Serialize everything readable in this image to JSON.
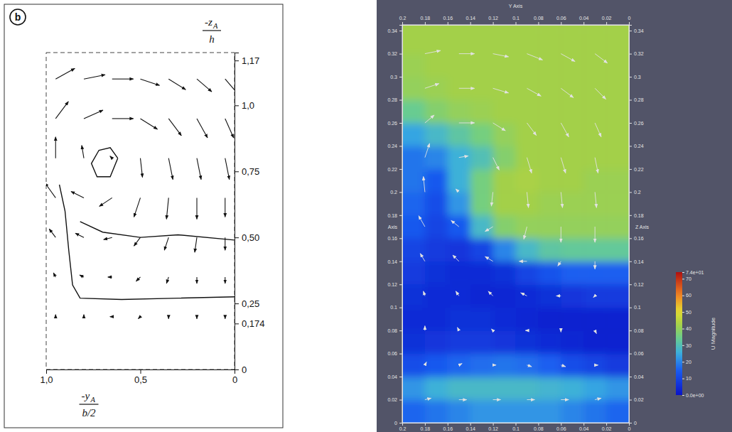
{
  "chart_data": [
    {
      "type": "quiver",
      "panel_label": "b",
      "color": "#111111",
      "xlim": [
        1.0,
        0
      ],
      "ylim": [
        0,
        1.2
      ],
      "xticks": [
        {
          "value": 1.0,
          "label": "1,0"
        },
        {
          "value": 0.5,
          "label": "0,5"
        },
        0
      ],
      "yticks": [
        0,
        {
          "value": 0.174,
          "label": "0,174"
        },
        {
          "value": 0.25,
          "label": "0,25"
        },
        {
          "value": 0.5,
          "label": "0,50"
        },
        {
          "value": 0.75,
          "label": "0,75"
        },
        {
          "value": 1.0,
          "label": "1,0"
        },
        {
          "value": 1.17,
          "label": "1,17"
        }
      ],
      "xlabel": {
        "numerator": "-y",
        "subscript": "A",
        "denominator": "b/2"
      },
      "ylabel": {
        "numerator": "-z",
        "subscript": "A",
        "denominator": "h"
      },
      "x": [
        0.95,
        0.8,
        0.65,
        0.5,
        0.35,
        0.2,
        0.05
      ],
      "y": [
        0.2,
        0.35,
        0.5,
        0.65,
        0.8,
        0.95,
        1.1
      ],
      "u": [
        [
          0,
          0,
          0.1,
          0.1,
          0,
          0,
          0
        ],
        [
          0.1,
          0.2,
          0.2,
          0.2,
          0.1,
          0,
          0
        ],
        [
          0.3,
          0.4,
          0.4,
          0.3,
          0.2,
          0.1,
          0
        ],
        [
          0.5,
          0.6,
          0.6,
          0.3,
          0.1,
          0,
          0
        ],
        [
          0,
          0.1,
          0.1,
          -0.1,
          -0.2,
          -0.2,
          -0.2
        ],
        [
          -0.6,
          -0.9,
          -1,
          -0.8,
          -0.6,
          -0.5,
          -0.4
        ],
        [
          -0.9,
          -1,
          -1,
          -0.9,
          -0.8,
          -0.7,
          -0.6
        ]
      ],
      "v": [
        [
          0.1,
          0.1,
          0,
          -0.1,
          -0.1,
          -0.1,
          -0.1
        ],
        [
          0.2,
          0.1,
          0,
          -0.2,
          -0.3,
          -0.3,
          -0.3
        ],
        [
          0.4,
          0.2,
          -0.1,
          -0.4,
          -0.6,
          -0.7,
          -0.6
        ],
        [
          0.7,
          0.3,
          -0.4,
          -0.9,
          -1,
          -1,
          -0.9
        ],
        [
          1,
          0.6,
          0.1,
          -0.9,
          -1,
          -1,
          -1
        ],
        [
          0.8,
          0.4,
          0,
          -0.5,
          -0.8,
          -0.9,
          -0.9
        ],
        [
          0.5,
          0.2,
          0,
          -0.3,
          -0.5,
          -0.6,
          -0.7
        ]
      ],
      "contours": [
        {
          "x": [
            0.62,
            0.66,
            0.72,
            0.76,
            0.73,
            0.66,
            0.62
          ],
          "y": [
            0.8,
            0.84,
            0.83,
            0.78,
            0.73,
            0.73,
            0.8
          ]
        },
        {
          "x": [
            0.93,
            0.9,
            0.88,
            0.86,
            0.82,
            0.6,
            0.3,
            0
          ],
          "y": [
            0.7,
            0.6,
            0.45,
            0.32,
            0.27,
            0.265,
            0.27,
            0.275
          ]
        },
        {
          "x": [
            0.82,
            0.7,
            0.5,
            0.3,
            0
          ],
          "y": [
            0.56,
            0.52,
            0.5,
            0.51,
            0.49
          ]
        }
      ]
    },
    {
      "type": "quiver",
      "color": "#e2e2e2",
      "xlabel": "Y Axis",
      "ylabel": "Z Axis",
      "ylabel_left": "Axis",
      "xlim": [
        0.2,
        0
      ],
      "ylim": [
        0,
        0.345
      ],
      "xticks": [
        0.2,
        0.18,
        0.16,
        0.14,
        0.12,
        0.1,
        0.08,
        0.06,
        0.04,
        0.02,
        0
      ],
      "yticks": [
        0,
        0.02,
        0.04,
        0.06,
        0.08,
        0.1,
        0.12,
        0.14,
        0.16,
        0.18,
        0.2,
        0.22,
        0.24,
        0.26,
        0.28,
        0.3,
        0.32,
        0.34
      ],
      "x": [
        0.18,
        0.15,
        0.12,
        0.09,
        0.06,
        0.03
      ],
      "y": [
        0.02,
        0.05,
        0.08,
        0.11,
        0.14,
        0.17,
        0.2,
        0.23,
        0.26,
        0.29,
        0.32
      ],
      "u": [
        [
          -0.4,
          -0.5,
          -0.5,
          -0.5,
          -0.5,
          -0.4
        ],
        [
          -0.1,
          -0.2,
          -0.2,
          -0.3,
          -0.3,
          -0.2
        ],
        [
          0,
          0.1,
          0.1,
          0.1,
          0,
          -0.1
        ],
        [
          0.1,
          0.2,
          0.3,
          0.4,
          0.3,
          0.1
        ],
        [
          0.3,
          0.4,
          0.5,
          0.5,
          0.2,
          0
        ],
        [
          0.4,
          0.5,
          0.5,
          0.2,
          0,
          0
        ],
        [
          0.1,
          0.2,
          0.1,
          -0.1,
          -0.1,
          -0.1
        ],
        [
          -0.3,
          -0.6,
          -0.4,
          -0.3,
          -0.3,
          -0.2
        ],
        [
          -0.6,
          -1,
          -0.8,
          -0.6,
          -0.5,
          -0.4
        ],
        [
          -0.9,
          -1,
          -1,
          -0.9,
          -0.8,
          -0.7
        ],
        [
          -1,
          -1,
          -1,
          -1,
          -0.9,
          -0.8
        ]
      ],
      "v": [
        [
          0.1,
          0,
          0,
          0,
          0,
          0.1
        ],
        [
          0.2,
          0.1,
          0,
          -0.1,
          -0.1,
          0
        ],
        [
          0.3,
          0.2,
          0.1,
          0,
          -0.1,
          -0.2
        ],
        [
          0.3,
          0.3,
          0.3,
          0.2,
          0,
          -0.1
        ],
        [
          0.5,
          0.4,
          0.3,
          0,
          -0.3,
          -0.5
        ],
        [
          0.7,
          0.4,
          -0.3,
          -0.8,
          -1,
          -1
        ],
        [
          1,
          0.2,
          -0.9,
          -1,
          -1,
          -1
        ],
        [
          0.9,
          0.1,
          -0.8,
          -1,
          -1,
          -1
        ],
        [
          0.5,
          0,
          -0.5,
          -0.8,
          -0.9,
          -0.9
        ],
        [
          0.3,
          0,
          -0.3,
          -0.5,
          -0.6,
          -0.7
        ],
        [
          0.2,
          0,
          -0.2,
          -0.4,
          -0.5,
          -0.6
        ]
      ],
      "field": {
        "x": [
          0.19,
          0.17,
          0.15,
          0.13,
          0.11,
          0.09,
          0.07,
          0.05,
          0.03,
          0.01
        ],
        "y": [
          0.01,
          0.03,
          0.05,
          0.07,
          0.09,
          0.11,
          0.13,
          0.15,
          0.17,
          0.19,
          0.21,
          0.23,
          0.25,
          0.27,
          0.29,
          0.31,
          0.33,
          0.35
        ],
        "values": [
          [
            16,
            18,
            20,
            22,
            22,
            22,
            22,
            20,
            18,
            16
          ],
          [
            22,
            26,
            28,
            28,
            28,
            28,
            27,
            26,
            24,
            22
          ],
          [
            12,
            14,
            16,
            17,
            18,
            17,
            15,
            12,
            10,
            8
          ],
          [
            6,
            7,
            8,
            8,
            7,
            6,
            5,
            4,
            3,
            3
          ],
          [
            5,
            5,
            6,
            6,
            5,
            4,
            3,
            3,
            3,
            3
          ],
          [
            6,
            5,
            5,
            4,
            4,
            5,
            6,
            7,
            8,
            8
          ],
          [
            8,
            6,
            5,
            5,
            6,
            10,
            13,
            15,
            15,
            15
          ],
          [
            10,
            8,
            7,
            10,
            20,
            28,
            32,
            33,
            33,
            33
          ],
          [
            14,
            10,
            14,
            28,
            38,
            40,
            40,
            40,
            40,
            40
          ],
          [
            16,
            12,
            22,
            36,
            42,
            42,
            41,
            41,
            41,
            41
          ],
          [
            18,
            14,
            26,
            36,
            42,
            43,
            42,
            42,
            41,
            41
          ],
          [
            18,
            20,
            26,
            30,
            38,
            42,
            42,
            42,
            42,
            42
          ],
          [
            24,
            28,
            32,
            36,
            40,
            42,
            42,
            42,
            42,
            42
          ],
          [
            34,
            38,
            40,
            41,
            42,
            42,
            42,
            42,
            42,
            42
          ],
          [
            40,
            41,
            42,
            42,
            42,
            42,
            42,
            42,
            42,
            42
          ],
          [
            41,
            42,
            42,
            42,
            42,
            42,
            42,
            42,
            42,
            42
          ],
          [
            42,
            42,
            42,
            42,
            42,
            42,
            42,
            42,
            42,
            42
          ],
          [
            42,
            42,
            42,
            42,
            42,
            42,
            42,
            42,
            42,
            42
          ]
        ]
      },
      "colorbar": {
        "title": "U Magnitude",
        "range": [
          0,
          74
        ],
        "ticks": [
          {
            "value": 0,
            "label": "0.0e+00"
          },
          10,
          20,
          30,
          40,
          50,
          60,
          70,
          {
            "value": 74,
            "label": "7.4e+01"
          }
        ]
      }
    }
  ]
}
